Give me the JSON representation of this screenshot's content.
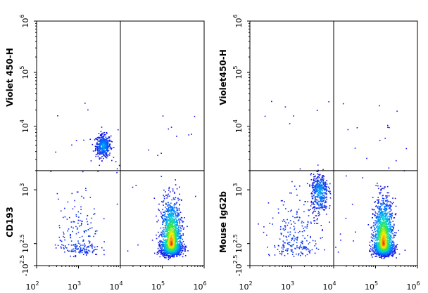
{
  "chart_data": [
    {
      "type": "scatter",
      "title": "",
      "x_scale": "log",
      "y_scale": "biexponential",
      "xlim": [
        100,
        1000000
      ],
      "ylim": [
        -316,
        1000000
      ],
      "x_ticks": [
        {
          "base": "10",
          "exp": "2"
        },
        {
          "base": "10",
          "exp": "3"
        },
        {
          "base": "10",
          "exp": "4"
        },
        {
          "base": "10",
          "exp": "5"
        },
        {
          "base": "10",
          "exp": "6"
        }
      ],
      "y_ticks": [
        {
          "base": "-10",
          "exp": "2.5"
        },
        {
          "base": "10",
          "exp": "2.5"
        },
        {
          "base": "10",
          "exp": "3"
        },
        {
          "base": "10",
          "exp": "4"
        },
        {
          "base": "10",
          "exp": "5"
        },
        {
          "base": "10",
          "exp": "6"
        }
      ],
      "ylabel_top": "Violet 450-H",
      "ylabel_bottom": "CD193",
      "quadrant_gate": {
        "x": 10000,
        "y": 2000
      },
      "populations": [
        {
          "name": "",
          "x_center": 3800,
          "y_center": 5000,
          "x_spread_decades": 0.09,
          "y_spread_decades": 0.09,
          "density": "high",
          "n": 420
        },
        {
          "name": "",
          "x_center": 160000,
          "y_center": 320,
          "x_spread_decades": 0.12,
          "y_spread_decades": 0.2,
          "density": "very-high",
          "n": 1800
        },
        {
          "name": "",
          "x_center": 1000,
          "y_center": 320,
          "x_spread_decades": 0.25,
          "y_spread_decades": 0.22,
          "density": "low",
          "n": 220
        }
      ]
    },
    {
      "type": "scatter",
      "title": "",
      "x_scale": "log",
      "y_scale": "biexponential",
      "xlim": [
        100,
        1000000
      ],
      "ylim": [
        -316,
        1000000
      ],
      "x_ticks": [
        {
          "base": "10",
          "exp": "2"
        },
        {
          "base": "10",
          "exp": "3"
        },
        {
          "base": "10",
          "exp": "4"
        },
        {
          "base": "10",
          "exp": "5"
        },
        {
          "base": "10",
          "exp": "6"
        }
      ],
      "y_ticks": [
        {
          "base": "-10",
          "exp": "2.5"
        },
        {
          "base": "10",
          "exp": "2.5"
        },
        {
          "base": "10",
          "exp": "3"
        },
        {
          "base": "10",
          "exp": "4"
        },
        {
          "base": "10",
          "exp": "5"
        },
        {
          "base": "10",
          "exp": "6"
        }
      ],
      "ylabel_top": "Violet450-H",
      "ylabel_bottom": "Mouse IgG2b",
      "quadrant_gate": {
        "x": 10000,
        "y": 2000
      },
      "populations": [
        {
          "name": "",
          "x_center": 4500,
          "y_center": 1000,
          "x_spread_decades": 0.1,
          "y_spread_decades": 0.12,
          "density": "high",
          "n": 420
        },
        {
          "name": "",
          "x_center": 150000,
          "y_center": 320,
          "x_spread_decades": 0.12,
          "y_spread_decades": 0.2,
          "density": "very-high",
          "n": 1800
        },
        {
          "name": "",
          "x_center": 1200,
          "y_center": 330,
          "x_spread_decades": 0.3,
          "y_spread_decades": 0.22,
          "density": "low",
          "n": 240
        }
      ]
    }
  ]
}
